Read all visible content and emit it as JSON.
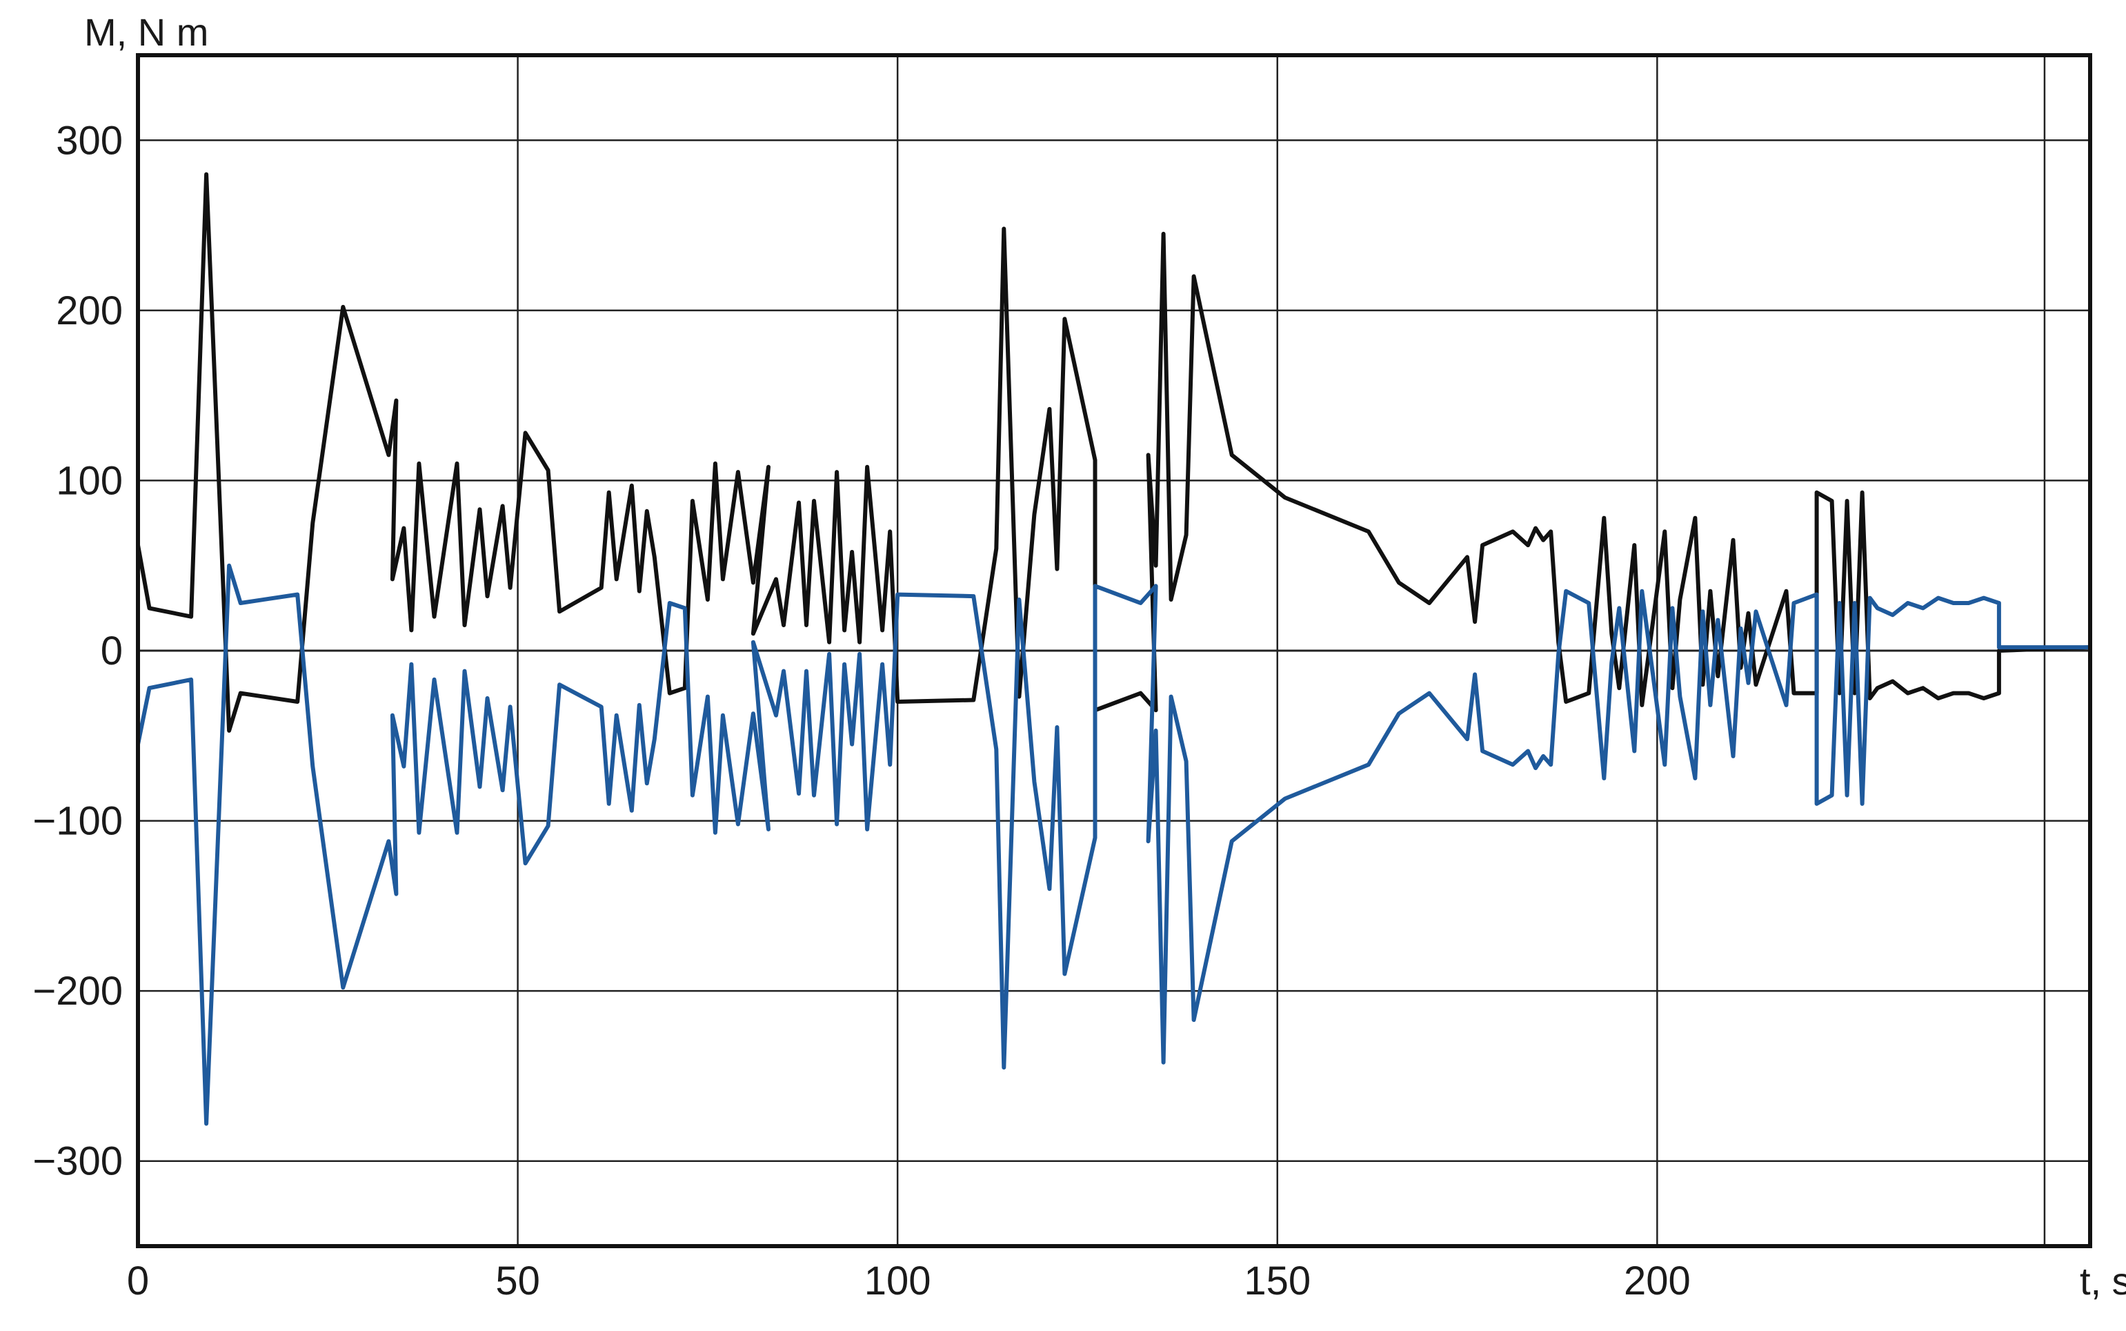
{
  "chart_data": {
    "type": "line",
    "title": "",
    "xlabel": "t, s",
    "ylabel": "M, N m",
    "xlim": [
      0,
      257
    ],
    "ylim": [
      -350,
      350
    ],
    "x_ticks": [
      0,
      50,
      100,
      150,
      200
    ],
    "x_tick_labels": [
      "0",
      "50",
      "100",
      "150",
      "200"
    ],
    "y_ticks": [
      300,
      200,
      100,
      0,
      -100,
      -200,
      -300
    ],
    "y_tick_labels": [
      "300",
      "200",
      "100",
      "0",
      "−100",
      "−200",
      "−300"
    ],
    "extra_v_gridlines": [
      251
    ],
    "grid": true,
    "legend": "none",
    "series": [
      {
        "color": "#111111",
        "points": [
          [
            0,
            62
          ],
          [
            1.5,
            25
          ],
          [
            7,
            20
          ],
          [
            9,
            280
          ],
          [
            12,
            -47
          ],
          [
            13.5,
            -25
          ],
          [
            21,
            -30
          ],
          [
            23,
            75
          ],
          [
            27,
            202
          ],
          [
            33,
            115
          ],
          [
            34,
            147
          ],
          [
            33.5,
            42
          ],
          [
            35,
            72
          ],
          [
            36,
            12
          ],
          [
            37,
            110
          ],
          [
            39,
            20
          ],
          [
            42,
            110
          ],
          [
            43,
            15
          ],
          [
            45,
            83
          ],
          [
            46,
            32
          ],
          [
            48,
            85
          ],
          [
            49,
            37
          ],
          [
            51,
            128
          ],
          [
            54,
            106
          ],
          [
            55.5,
            23
          ],
          [
            61,
            37
          ],
          [
            62,
            93
          ],
          [
            63,
            42
          ],
          [
            65,
            97
          ],
          [
            66,
            35
          ],
          [
            67,
            82
          ],
          [
            68,
            55
          ],
          [
            70,
            -25
          ],
          [
            72,
            -22
          ],
          [
            73,
            88
          ],
          [
            75,
            30
          ],
          [
            76,
            110
          ],
          [
            77,
            42
          ],
          [
            79,
            105
          ],
          [
            81,
            40
          ],
          [
            83,
            108
          ],
          [
            81,
            10
          ],
          [
            84,
            42
          ],
          [
            85,
            15
          ],
          [
            87,
            87
          ],
          [
            88,
            15
          ],
          [
            89,
            88
          ],
          [
            91,
            5
          ],
          [
            92,
            105
          ],
          [
            93,
            12
          ],
          [
            94,
            58
          ],
          [
            95,
            5
          ],
          [
            96,
            108
          ],
          [
            98,
            12
          ],
          [
            99,
            70
          ],
          [
            100,
            -30
          ],
          [
            110,
            -29
          ],
          [
            113,
            60
          ],
          [
            114,
            248
          ],
          [
            116,
            -27
          ],
          [
            118,
            80
          ],
          [
            120,
            142
          ],
          [
            121,
            48
          ],
          [
            122,
            195
          ],
          [
            126,
            112
          ],
          [
            126,
            -35
          ],
          [
            132,
            -25
          ],
          [
            134,
            -35
          ],
          [
            133,
            115
          ],
          [
            134,
            50
          ],
          [
            135,
            245
          ],
          [
            136,
            30
          ],
          [
            138,
            68
          ],
          [
            139,
            220
          ],
          [
            144,
            115
          ],
          [
            151,
            90
          ],
          [
            162,
            70
          ],
          [
            166,
            40
          ],
          [
            170,
            28
          ],
          [
            175,
            55
          ],
          [
            176,
            17
          ],
          [
            177,
            62
          ],
          [
            181,
            70
          ],
          [
            183,
            62
          ],
          [
            184,
            72
          ],
          [
            185,
            65
          ],
          [
            186,
            70
          ],
          [
            187,
            5
          ],
          [
            188,
            -30
          ],
          [
            191,
            -25
          ],
          [
            193,
            78
          ],
          [
            194,
            10
          ],
          [
            195,
            -22
          ],
          [
            197,
            62
          ],
          [
            198,
            -32
          ],
          [
            201,
            70
          ],
          [
            202,
            -22
          ],
          [
            203,
            30
          ],
          [
            205,
            78
          ],
          [
            206,
            -20
          ],
          [
            207,
            35
          ],
          [
            208,
            -15
          ],
          [
            210,
            65
          ],
          [
            211,
            -10
          ],
          [
            212,
            22
          ],
          [
            213,
            -20
          ],
          [
            217,
            35
          ],
          [
            218,
            -25
          ],
          [
            221,
            -25
          ],
          [
            221,
            93
          ],
          [
            223,
            88
          ],
          [
            224,
            -25
          ],
          [
            225,
            88
          ],
          [
            226,
            -25
          ],
          [
            227,
            93
          ],
          [
            228,
            -28
          ],
          [
            229,
            -22
          ],
          [
            231,
            -18
          ],
          [
            233,
            -25
          ],
          [
            235,
            -22
          ],
          [
            237,
            -28
          ],
          [
            239,
            -25
          ],
          [
            241,
            -25
          ],
          [
            243,
            -28
          ],
          [
            245,
            -25
          ],
          [
            245,
            0
          ],
          [
            257,
            2
          ]
        ]
      },
      {
        "color": "#1f5a9c",
        "points": [
          [
            0,
            -55
          ],
          [
            1.5,
            -22
          ],
          [
            7,
            -17
          ],
          [
            9,
            -278
          ],
          [
            12,
            50
          ],
          [
            13.5,
            28
          ],
          [
            21,
            33
          ],
          [
            23,
            -68
          ],
          [
            27,
            -198
          ],
          [
            33,
            -112
          ],
          [
            34,
            -143
          ],
          [
            33.5,
            -38
          ],
          [
            35,
            -68
          ],
          [
            36,
            -8
          ],
          [
            37,
            -107
          ],
          [
            39,
            -17
          ],
          [
            42,
            -107
          ],
          [
            43,
            -12
          ],
          [
            45,
            -80
          ],
          [
            46,
            -28
          ],
          [
            48,
            -82
          ],
          [
            49,
            -33
          ],
          [
            51,
            -125
          ],
          [
            54,
            -103
          ],
          [
            55.5,
            -20
          ],
          [
            61,
            -33
          ],
          [
            62,
            -90
          ],
          [
            63,
            -38
          ],
          [
            65,
            -94
          ],
          [
            66,
            -32
          ],
          [
            67,
            -78
          ],
          [
            68,
            -52
          ],
          [
            70,
            28
          ],
          [
            72,
            25
          ],
          [
            73,
            -85
          ],
          [
            75,
            -27
          ],
          [
            76,
            -107
          ],
          [
            77,
            -38
          ],
          [
            79,
            -102
          ],
          [
            81,
            -37
          ],
          [
            83,
            -105
          ],
          [
            81,
            5
          ],
          [
            84,
            -38
          ],
          [
            85,
            -12
          ],
          [
            87,
            -84
          ],
          [
            88,
            -12
          ],
          [
            89,
            -85
          ],
          [
            91,
            -2
          ],
          [
            92,
            -102
          ],
          [
            93,
            -8
          ],
          [
            94,
            -55
          ],
          [
            95,
            -2
          ],
          [
            96,
            -105
          ],
          [
            98,
            -8
          ],
          [
            99,
            -67
          ],
          [
            100,
            33
          ],
          [
            110,
            32
          ],
          [
            113,
            -58
          ],
          [
            114,
            -245
          ],
          [
            116,
            30
          ],
          [
            118,
            -77
          ],
          [
            120,
            -140
          ],
          [
            121,
            -45
          ],
          [
            122,
            -190
          ],
          [
            126,
            -110
          ],
          [
            126,
            38
          ],
          [
            132,
            28
          ],
          [
            134,
            38
          ],
          [
            133,
            -112
          ],
          [
            134,
            -47
          ],
          [
            135,
            -242
          ],
          [
            136,
            -27
          ],
          [
            138,
            -65
          ],
          [
            139,
            -217
          ],
          [
            144,
            -112
          ],
          [
            151,
            -87
          ],
          [
            162,
            -67
          ],
          [
            166,
            -37
          ],
          [
            170,
            -25
          ],
          [
            175,
            -52
          ],
          [
            176,
            -14
          ],
          [
            177,
            -59
          ],
          [
            181,
            -67
          ],
          [
            183,
            -59
          ],
          [
            184,
            -69
          ],
          [
            185,
            -62
          ],
          [
            186,
            -67
          ],
          [
            187,
            -2
          ],
          [
            188,
            35
          ],
          [
            191,
            28
          ],
          [
            193,
            -75
          ],
          [
            194,
            -7
          ],
          [
            195,
            25
          ],
          [
            197,
            -59
          ],
          [
            198,
            35
          ],
          [
            201,
            -67
          ],
          [
            202,
            25
          ],
          [
            203,
            -27
          ],
          [
            205,
            -75
          ],
          [
            206,
            23
          ],
          [
            207,
            -32
          ],
          [
            208,
            18
          ],
          [
            210,
            -62
          ],
          [
            211,
            13
          ],
          [
            212,
            -19
          ],
          [
            213,
            23
          ],
          [
            217,
            -32
          ],
          [
            218,
            28
          ],
          [
            221,
            33
          ],
          [
            221,
            -90
          ],
          [
            223,
            -85
          ],
          [
            224,
            28
          ],
          [
            225,
            -85
          ],
          [
            226,
            28
          ],
          [
            227,
            -90
          ],
          [
            228,
            31
          ],
          [
            229,
            25
          ],
          [
            231,
            21
          ],
          [
            233,
            28
          ],
          [
            235,
            25
          ],
          [
            237,
            31
          ],
          [
            239,
            28
          ],
          [
            241,
            28
          ],
          [
            243,
            31
          ],
          [
            245,
            28
          ],
          [
            245,
            2
          ],
          [
            257,
            2
          ]
        ]
      }
    ]
  }
}
